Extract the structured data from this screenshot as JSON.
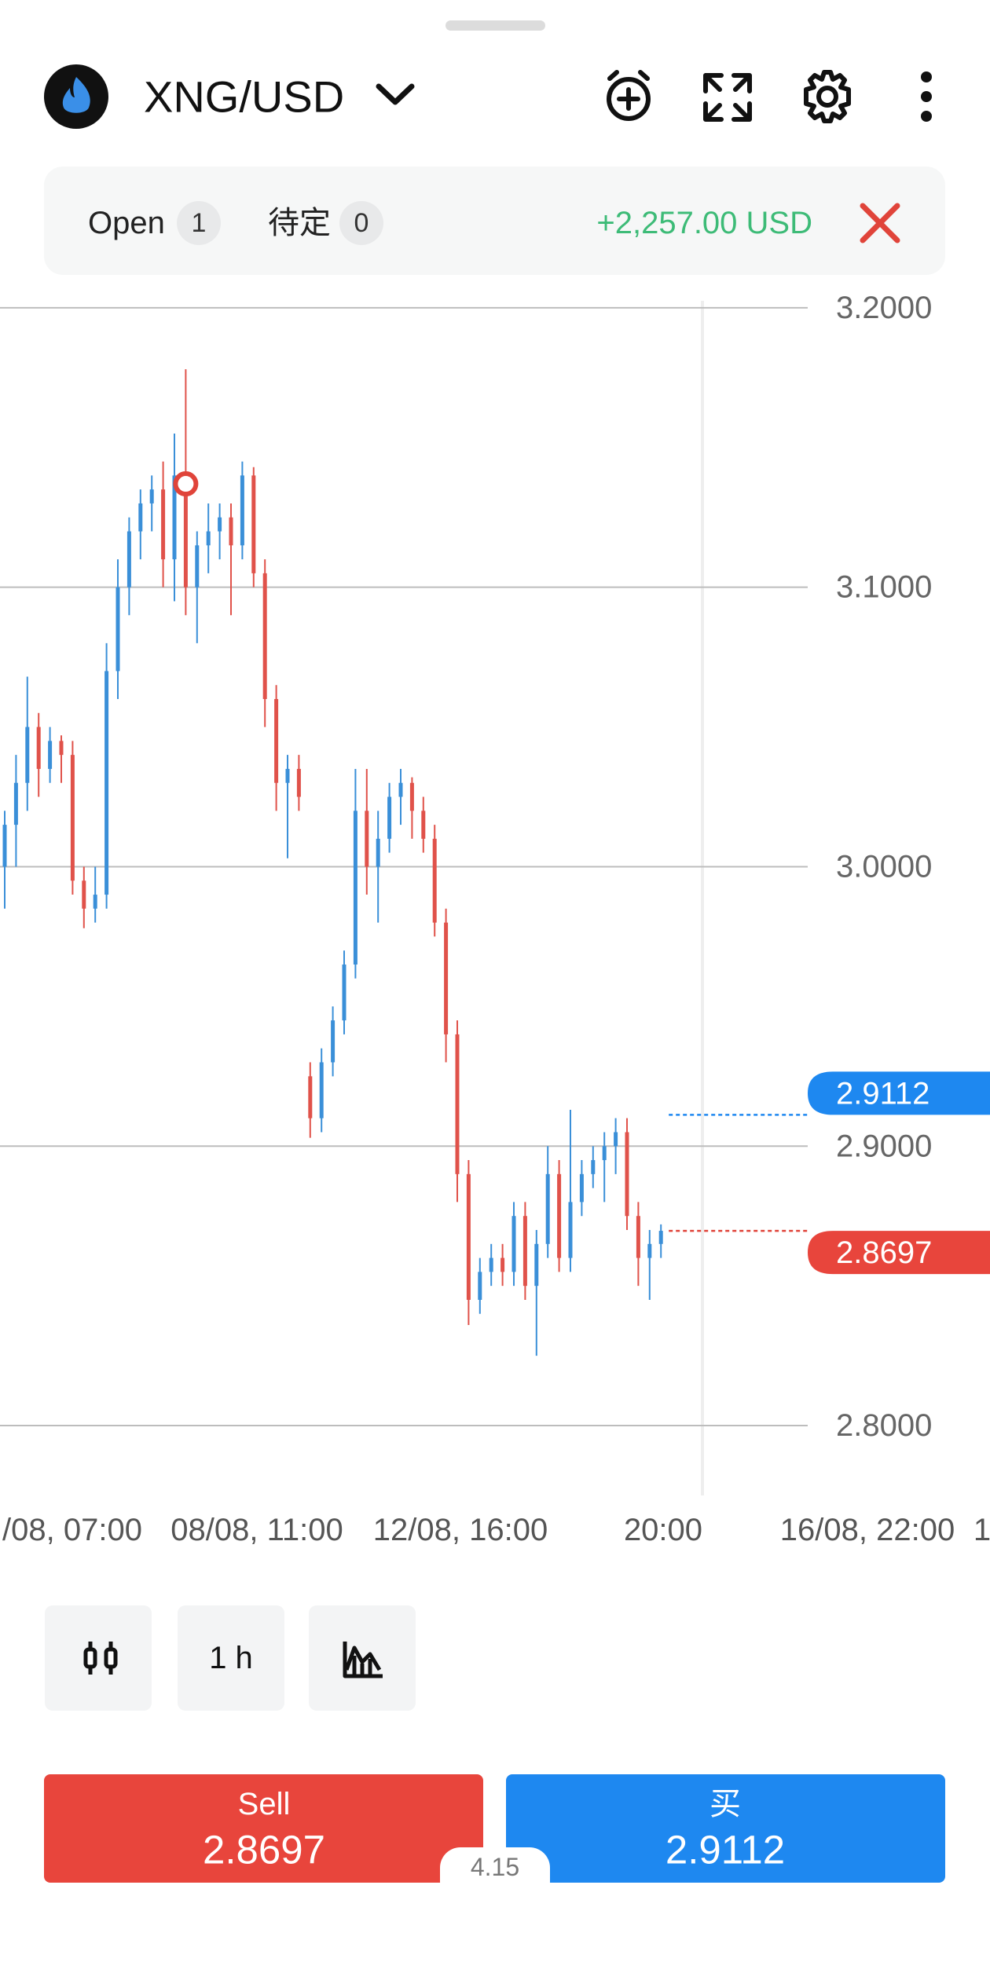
{
  "header": {
    "symbol": "XNG/USD"
  },
  "positions": {
    "open_label": "Open",
    "open_count": 1,
    "pending_label": "待定",
    "pending_count": 0,
    "profit": "+2,257.00 USD"
  },
  "chart": {
    "type": "candlestick",
    "ylim": [
      2.775,
      3.2025
    ],
    "yticks": [
      {
        "value": 2.8,
        "label": "2.8000"
      },
      {
        "value": 2.9,
        "label": "2.9000"
      },
      {
        "value": 3.0,
        "label": "3.0000"
      },
      {
        "value": 3.1,
        "label": "3.1000"
      },
      {
        "value": 3.2,
        "label": "3.2000"
      }
    ],
    "x_labels": [
      "/08, 07:00",
      "08/08, 11:00",
      "12/08, 16:00",
      "20:00",
      "16/08, 22:00",
      "1"
    ],
    "up_color": "#3a8fd8",
    "down_color": "#e0524a",
    "entry_price": 3.137,
    "ask": 2.9112,
    "bid": 2.8697,
    "candles": [
      [
        3.0,
        3.02,
        2.985,
        3.015
      ],
      [
        3.015,
        3.04,
        3.0,
        3.03
      ],
      [
        3.03,
        3.068,
        3.02,
        3.05
      ],
      [
        3.05,
        3.055,
        3.025,
        3.035
      ],
      [
        3.035,
        3.05,
        3.03,
        3.045
      ],
      [
        3.045,
        3.047,
        3.03,
        3.04
      ],
      [
        3.04,
        3.045,
        2.99,
        2.995
      ],
      [
        2.995,
        3.0,
        2.978,
        2.985
      ],
      [
        2.985,
        3.0,
        2.98,
        2.99
      ],
      [
        2.99,
        3.08,
        2.985,
        3.07
      ],
      [
        3.07,
        3.11,
        3.06,
        3.1
      ],
      [
        3.1,
        3.125,
        3.09,
        3.12
      ],
      [
        3.12,
        3.135,
        3.11,
        3.13
      ],
      [
        3.13,
        3.14,
        3.12,
        3.135
      ],
      [
        3.135,
        3.145,
        3.1,
        3.11
      ],
      [
        3.11,
        3.155,
        3.095,
        3.14
      ],
      [
        3.14,
        3.178,
        3.09,
        3.1
      ],
      [
        3.1,
        3.12,
        3.08,
        3.115
      ],
      [
        3.115,
        3.13,
        3.105,
        3.12
      ],
      [
        3.12,
        3.13,
        3.11,
        3.125
      ],
      [
        3.125,
        3.13,
        3.09,
        3.115
      ],
      [
        3.115,
        3.145,
        3.11,
        3.14
      ],
      [
        3.14,
        3.143,
        3.1,
        3.105
      ],
      [
        3.105,
        3.11,
        3.05,
        3.06
      ],
      [
        3.06,
        3.065,
        3.02,
        3.03
      ],
      [
        3.03,
        3.04,
        3.003,
        3.035
      ],
      [
        3.035,
        3.04,
        3.02,
        3.025
      ],
      [
        2.925,
        2.93,
        2.903,
        2.91
      ],
      [
        2.91,
        2.935,
        2.905,
        2.93
      ],
      [
        2.93,
        2.95,
        2.925,
        2.945
      ],
      [
        2.945,
        2.97,
        2.94,
        2.965
      ],
      [
        2.965,
        3.035,
        2.96,
        3.02
      ],
      [
        3.02,
        3.035,
        2.99,
        3.0
      ],
      [
        3.0,
        3.02,
        2.98,
        3.01
      ],
      [
        3.01,
        3.03,
        3.005,
        3.025
      ],
      [
        3.025,
        3.035,
        3.015,
        3.03
      ],
      [
        3.03,
        3.032,
        3.01,
        3.02
      ],
      [
        3.02,
        3.025,
        3.005,
        3.01
      ],
      [
        3.01,
        3.015,
        2.975,
        2.98
      ],
      [
        2.98,
        2.985,
        2.93,
        2.94
      ],
      [
        2.94,
        2.945,
        2.88,
        2.89
      ],
      [
        2.89,
        2.895,
        2.836,
        2.845
      ],
      [
        2.845,
        2.86,
        2.84,
        2.855
      ],
      [
        2.855,
        2.865,
        2.85,
        2.86
      ],
      [
        2.86,
        2.865,
        2.85,
        2.855
      ],
      [
        2.855,
        2.88,
        2.85,
        2.875
      ],
      [
        2.875,
        2.88,
        2.845,
        2.85
      ],
      [
        2.85,
        2.87,
        2.825,
        2.865
      ],
      [
        2.865,
        2.9,
        2.86,
        2.89
      ],
      [
        2.89,
        2.895,
        2.855,
        2.86
      ],
      [
        2.86,
        2.913,
        2.855,
        2.88
      ],
      [
        2.88,
        2.895,
        2.875,
        2.89
      ],
      [
        2.89,
        2.9,
        2.885,
        2.895
      ],
      [
        2.895,
        2.905,
        2.88,
        2.9
      ],
      [
        2.9,
        2.91,
        2.89,
        2.905
      ],
      [
        2.905,
        2.91,
        2.87,
        2.875
      ],
      [
        2.875,
        2.88,
        2.85,
        2.86
      ],
      [
        2.86,
        2.87,
        2.845,
        2.865
      ],
      [
        2.865,
        2.872,
        2.86,
        2.8697
      ]
    ]
  },
  "toolbar": {
    "interval": "1 h"
  },
  "trade": {
    "sell_label": "Sell",
    "buy_label": "买",
    "spread": 4.15
  }
}
